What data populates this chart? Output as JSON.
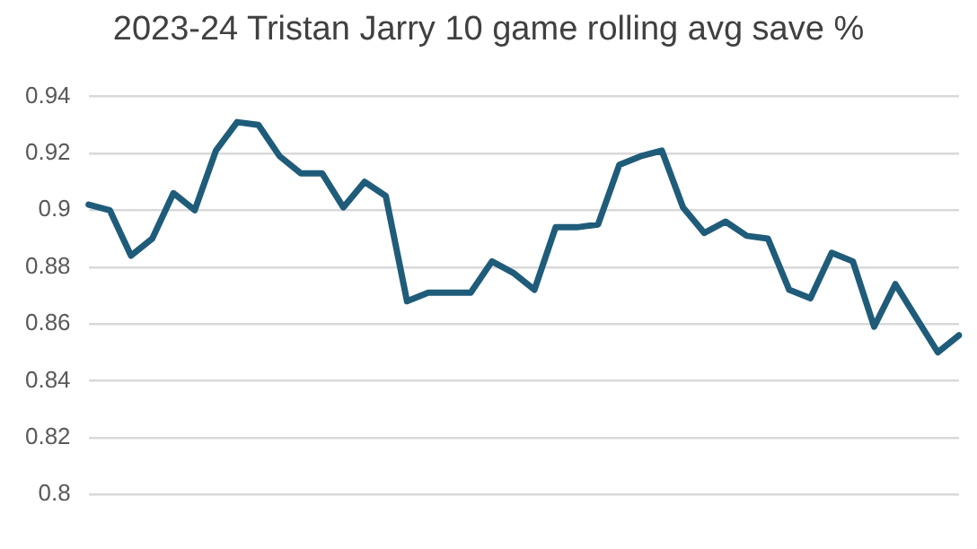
{
  "chart_data": {
    "type": "line",
    "title": "2023-24 Tristan Jarry 10 game rolling avg save %",
    "categories": [
      null,
      null,
      null,
      null,
      null,
      null,
      null,
      null,
      null,
      null,
      null,
      null,
      null,
      null,
      null,
      null,
      null,
      null,
      null,
      null,
      null,
      null,
      null,
      null,
      null,
      null,
      null,
      null,
      null,
      null,
      null,
      null,
      null,
      null,
      null,
      null,
      null,
      null,
      null,
      null,
      null,
      null
    ],
    "series": [
      {
        "color": "#1f5c7a",
        "values": [
          0.902,
          0.9,
          0.884,
          0.89,
          0.906,
          0.9,
          0.921,
          0.931,
          0.93,
          0.919,
          0.913,
          0.913,
          0.901,
          0.91,
          0.905,
          0.868,
          0.871,
          0.871,
          0.871,
          0.882,
          0.878,
          0.872,
          0.894,
          0.894,
          0.895,
          0.916,
          0.919,
          0.921,
          0.901,
          0.892,
          0.896,
          0.891,
          0.89,
          0.872,
          0.869,
          0.885,
          0.882,
          0.859,
          0.874,
          0.862,
          0.85,
          0.856
        ]
      }
    ],
    "ylim": [
      0.8,
      0.94
    ],
    "yticks": [
      0.8,
      0.82,
      0.84,
      0.86,
      0.88,
      0.9,
      0.92,
      0.94
    ],
    "grid": "y",
    "legend": false,
    "marker": "none",
    "line_style": "solid"
  }
}
